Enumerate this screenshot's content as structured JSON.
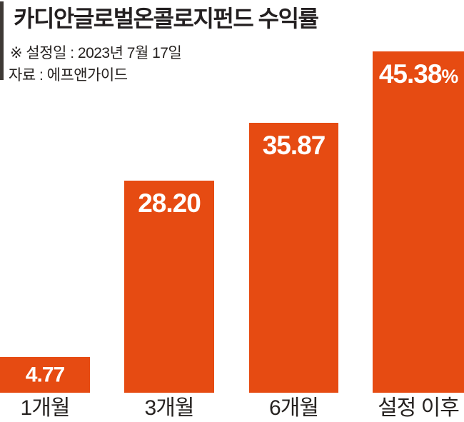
{
  "header": {
    "title": "카디안글로벌온콜로지펀드 수익률",
    "note": "※ 설정일 : 2023년 7월 17일",
    "source": "자료 : 에프앤가이드"
  },
  "colors": {
    "bar": "#E64B12",
    "accent_bar": "#3E3935",
    "title_text": "#231F20",
    "body_text": "#262220",
    "value_text": "#FFFFFF",
    "background": "#FFFFFF"
  },
  "chart_data": {
    "type": "bar",
    "title": "카디안글로벌온콜로지펀드 수익률",
    "unit": "%",
    "categories": [
      "1개월",
      "3개월",
      "6개월",
      "설정 이후"
    ],
    "values": [
      4.77,
      28.2,
      35.87,
      45.38
    ],
    "ylim": [
      0,
      48
    ],
    "grid": false,
    "legend": false,
    "value_labels_inside_bars": true,
    "bars": [
      {
        "category": "1개월",
        "value": 4.77,
        "label": "4.77",
        "suffix": ""
      },
      {
        "category": "3개월",
        "value": 28.2,
        "label": "28.20",
        "suffix": ""
      },
      {
        "category": "6개월",
        "value": 35.87,
        "label": "35.87",
        "suffix": ""
      },
      {
        "category": "설정 이후",
        "value": 45.38,
        "label": "45.38",
        "suffix": "%"
      }
    ]
  }
}
